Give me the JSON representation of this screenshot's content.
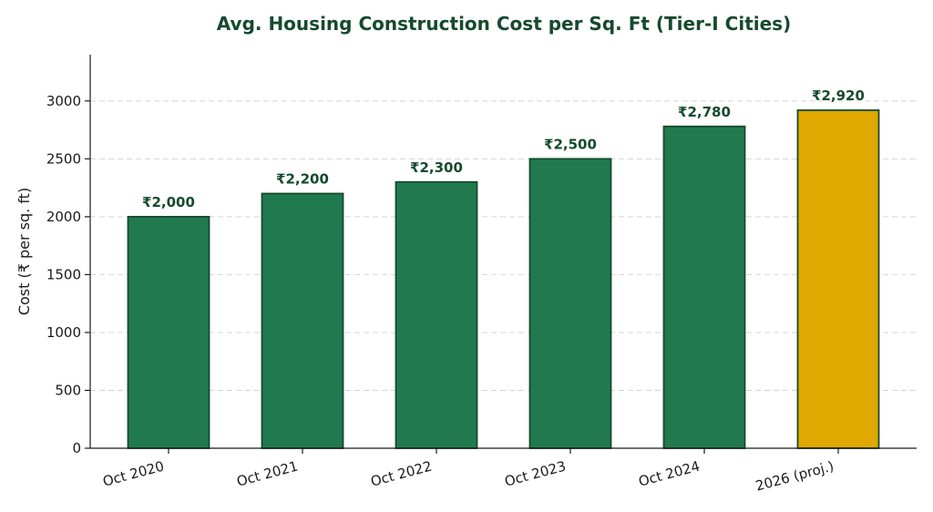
{
  "chart_data": {
    "type": "bar",
    "title": "Avg. Housing Construction Cost per Sq. Ft (Tier-I Cities)",
    "xlabel": "",
    "ylabel": "Cost (₹ per sq. ft)",
    "categories": [
      "Oct 2020",
      "Oct 2021",
      "Oct 2022",
      "Oct 2023",
      "Oct 2024",
      "2026 (proj.)"
    ],
    "values": [
      2000,
      2200,
      2300,
      2500,
      2780,
      2920
    ],
    "data_labels": [
      "₹2,000",
      "₹2,200",
      "₹2,300",
      "₹2,500",
      "₹2,780",
      "₹2,920"
    ],
    "projected": [
      false,
      false,
      false,
      false,
      false,
      true
    ],
    "ylim": [
      0,
      3400
    ],
    "yticks": [
      0,
      500,
      1000,
      1500,
      2000,
      2500,
      3000
    ],
    "grid": "horizontal dashed",
    "colors": {
      "actual": "#217a4f",
      "projected": "#e0a800",
      "edge": "#154a2e",
      "title": "#154a2e"
    }
  }
}
